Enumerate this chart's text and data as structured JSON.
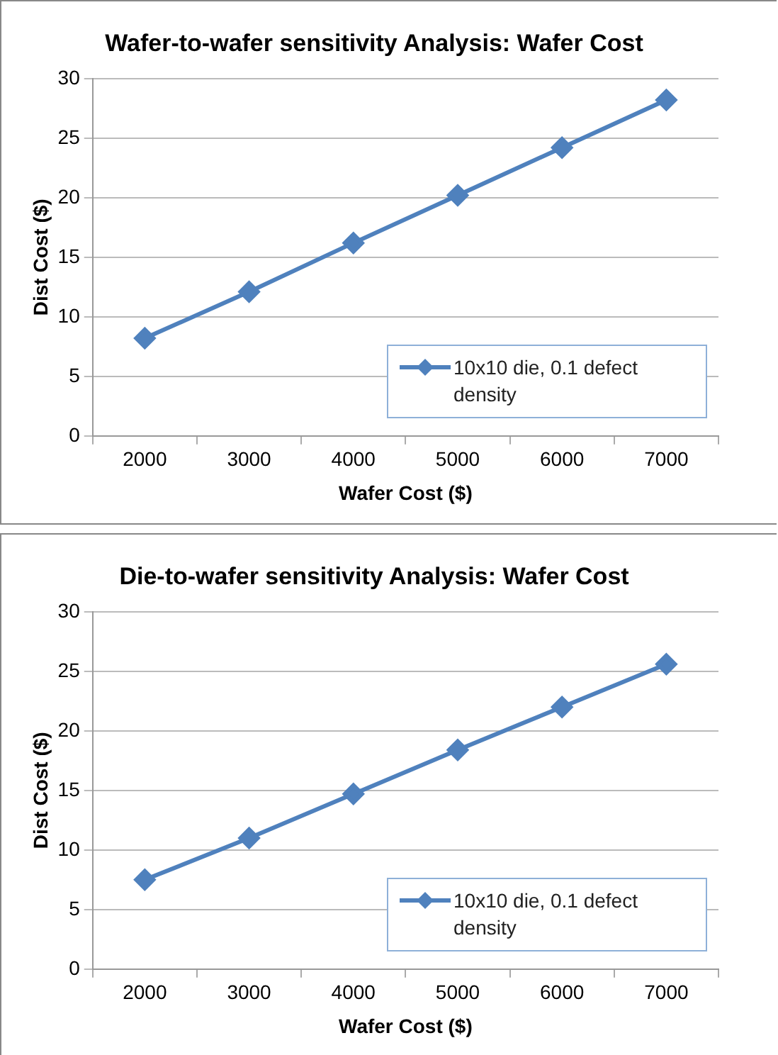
{
  "chart_data": [
    {
      "type": "line",
      "title": "Wafer-to-wafer sensitivity Analysis: Wafer Cost",
      "xlabel": "Wafer Cost ($)",
      "ylabel": "Dist Cost ($)",
      "categories": [
        "2000",
        "3000",
        "4000",
        "5000",
        "6000",
        "7000"
      ],
      "series": [
        {
          "name": "10x10 die, 0.1 defect density",
          "color": "#4f81bd",
          "values": [
            8.2,
            12.1,
            16.2,
            20.2,
            24.2,
            28.2
          ]
        }
      ],
      "ylim": [
        0,
        30
      ],
      "yticks": [
        0,
        5,
        10,
        15,
        20,
        25,
        30
      ],
      "grid": "y",
      "legend": "bottom right",
      "marker": "diamond",
      "line_style": "solid"
    },
    {
      "type": "line",
      "title": "Die-to-wafer sensitivity Analysis: Wafer Cost",
      "xlabel": "Wafer Cost ($)",
      "ylabel": "Dist Cost ($)",
      "categories": [
        "2000",
        "3000",
        "4000",
        "5000",
        "6000",
        "7000"
      ],
      "series": [
        {
          "name": "10x10 die, 0.1 defect density",
          "color": "#4f81bd",
          "values": [
            7.5,
            11.0,
            14.7,
            18.4,
            22.0,
            25.6
          ]
        }
      ],
      "ylim": [
        0,
        30
      ],
      "yticks": [
        0,
        5,
        10,
        15,
        20,
        25,
        30
      ],
      "grid": "y",
      "legend": "bottom right",
      "marker": "diamond",
      "line_style": "solid"
    }
  ]
}
